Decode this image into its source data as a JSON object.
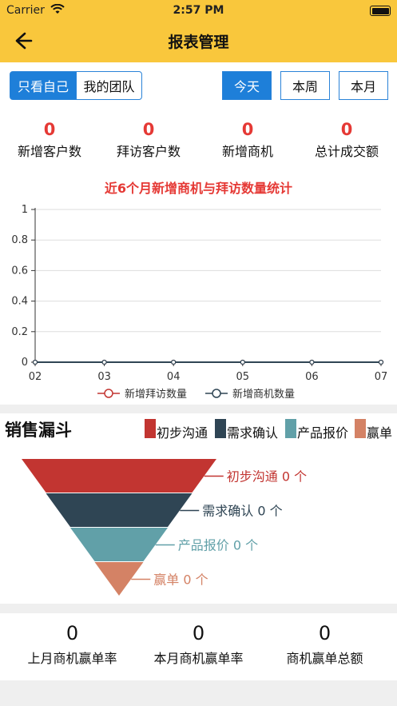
{
  "status": {
    "carrier": "Carrier",
    "time": "2:57 PM"
  },
  "header": {
    "title": "报表管理"
  },
  "scope_tabs": [
    {
      "label": "只看自己",
      "active": true
    },
    {
      "label": "我的团队",
      "active": false
    }
  ],
  "period_tabs": [
    {
      "label": "今天",
      "active": true
    },
    {
      "label": "本周",
      "active": false
    },
    {
      "label": "本月",
      "active": false
    }
  ],
  "stats": [
    {
      "value": "0",
      "label": "新增客户数"
    },
    {
      "value": "0",
      "label": "拜访客户数"
    },
    {
      "value": "0",
      "label": "新增商机"
    },
    {
      "value": "0",
      "label": "总计成交额"
    }
  ],
  "chart_data": {
    "type": "line",
    "title": "近6个月新增商机与拜访数量统计",
    "x": [
      "02",
      "03",
      "04",
      "05",
      "06",
      "07"
    ],
    "ylim": [
      0,
      1
    ],
    "yticks": [
      "0",
      "0.2",
      "0.4",
      "0.6",
      "0.8",
      "1"
    ],
    "series": [
      {
        "name": "新增拜访数量",
        "values": [
          0,
          0,
          0,
          0,
          0,
          0
        ],
        "color": "#c23531"
      },
      {
        "name": "新增商机数量",
        "values": [
          0,
          0,
          0,
          0,
          0,
          0
        ],
        "color": "#2f4554"
      }
    ],
    "legend": "bottom",
    "grid": true
  },
  "funnel": {
    "title": "销售漏斗",
    "stages": [
      {
        "name": "初步沟通",
        "label": "初步沟通 0 个",
        "value": 0,
        "color": "#c23531"
      },
      {
        "name": "需求确认",
        "label": "需求确认 0 个",
        "value": 0,
        "color": "#2f4554"
      },
      {
        "name": "产品报价",
        "label": "产品报价 0 个",
        "value": 0,
        "color": "#61a0a8"
      },
      {
        "name": "赢单",
        "label": "赢单 0 个",
        "value": 0,
        "color": "#d48265"
      }
    ]
  },
  "bottom_stats": [
    {
      "value": "0",
      "label": "上月商机赢单率"
    },
    {
      "value": "0",
      "label": "本月商机赢单率"
    },
    {
      "value": "0",
      "label": "商机赢单总额"
    }
  ]
}
